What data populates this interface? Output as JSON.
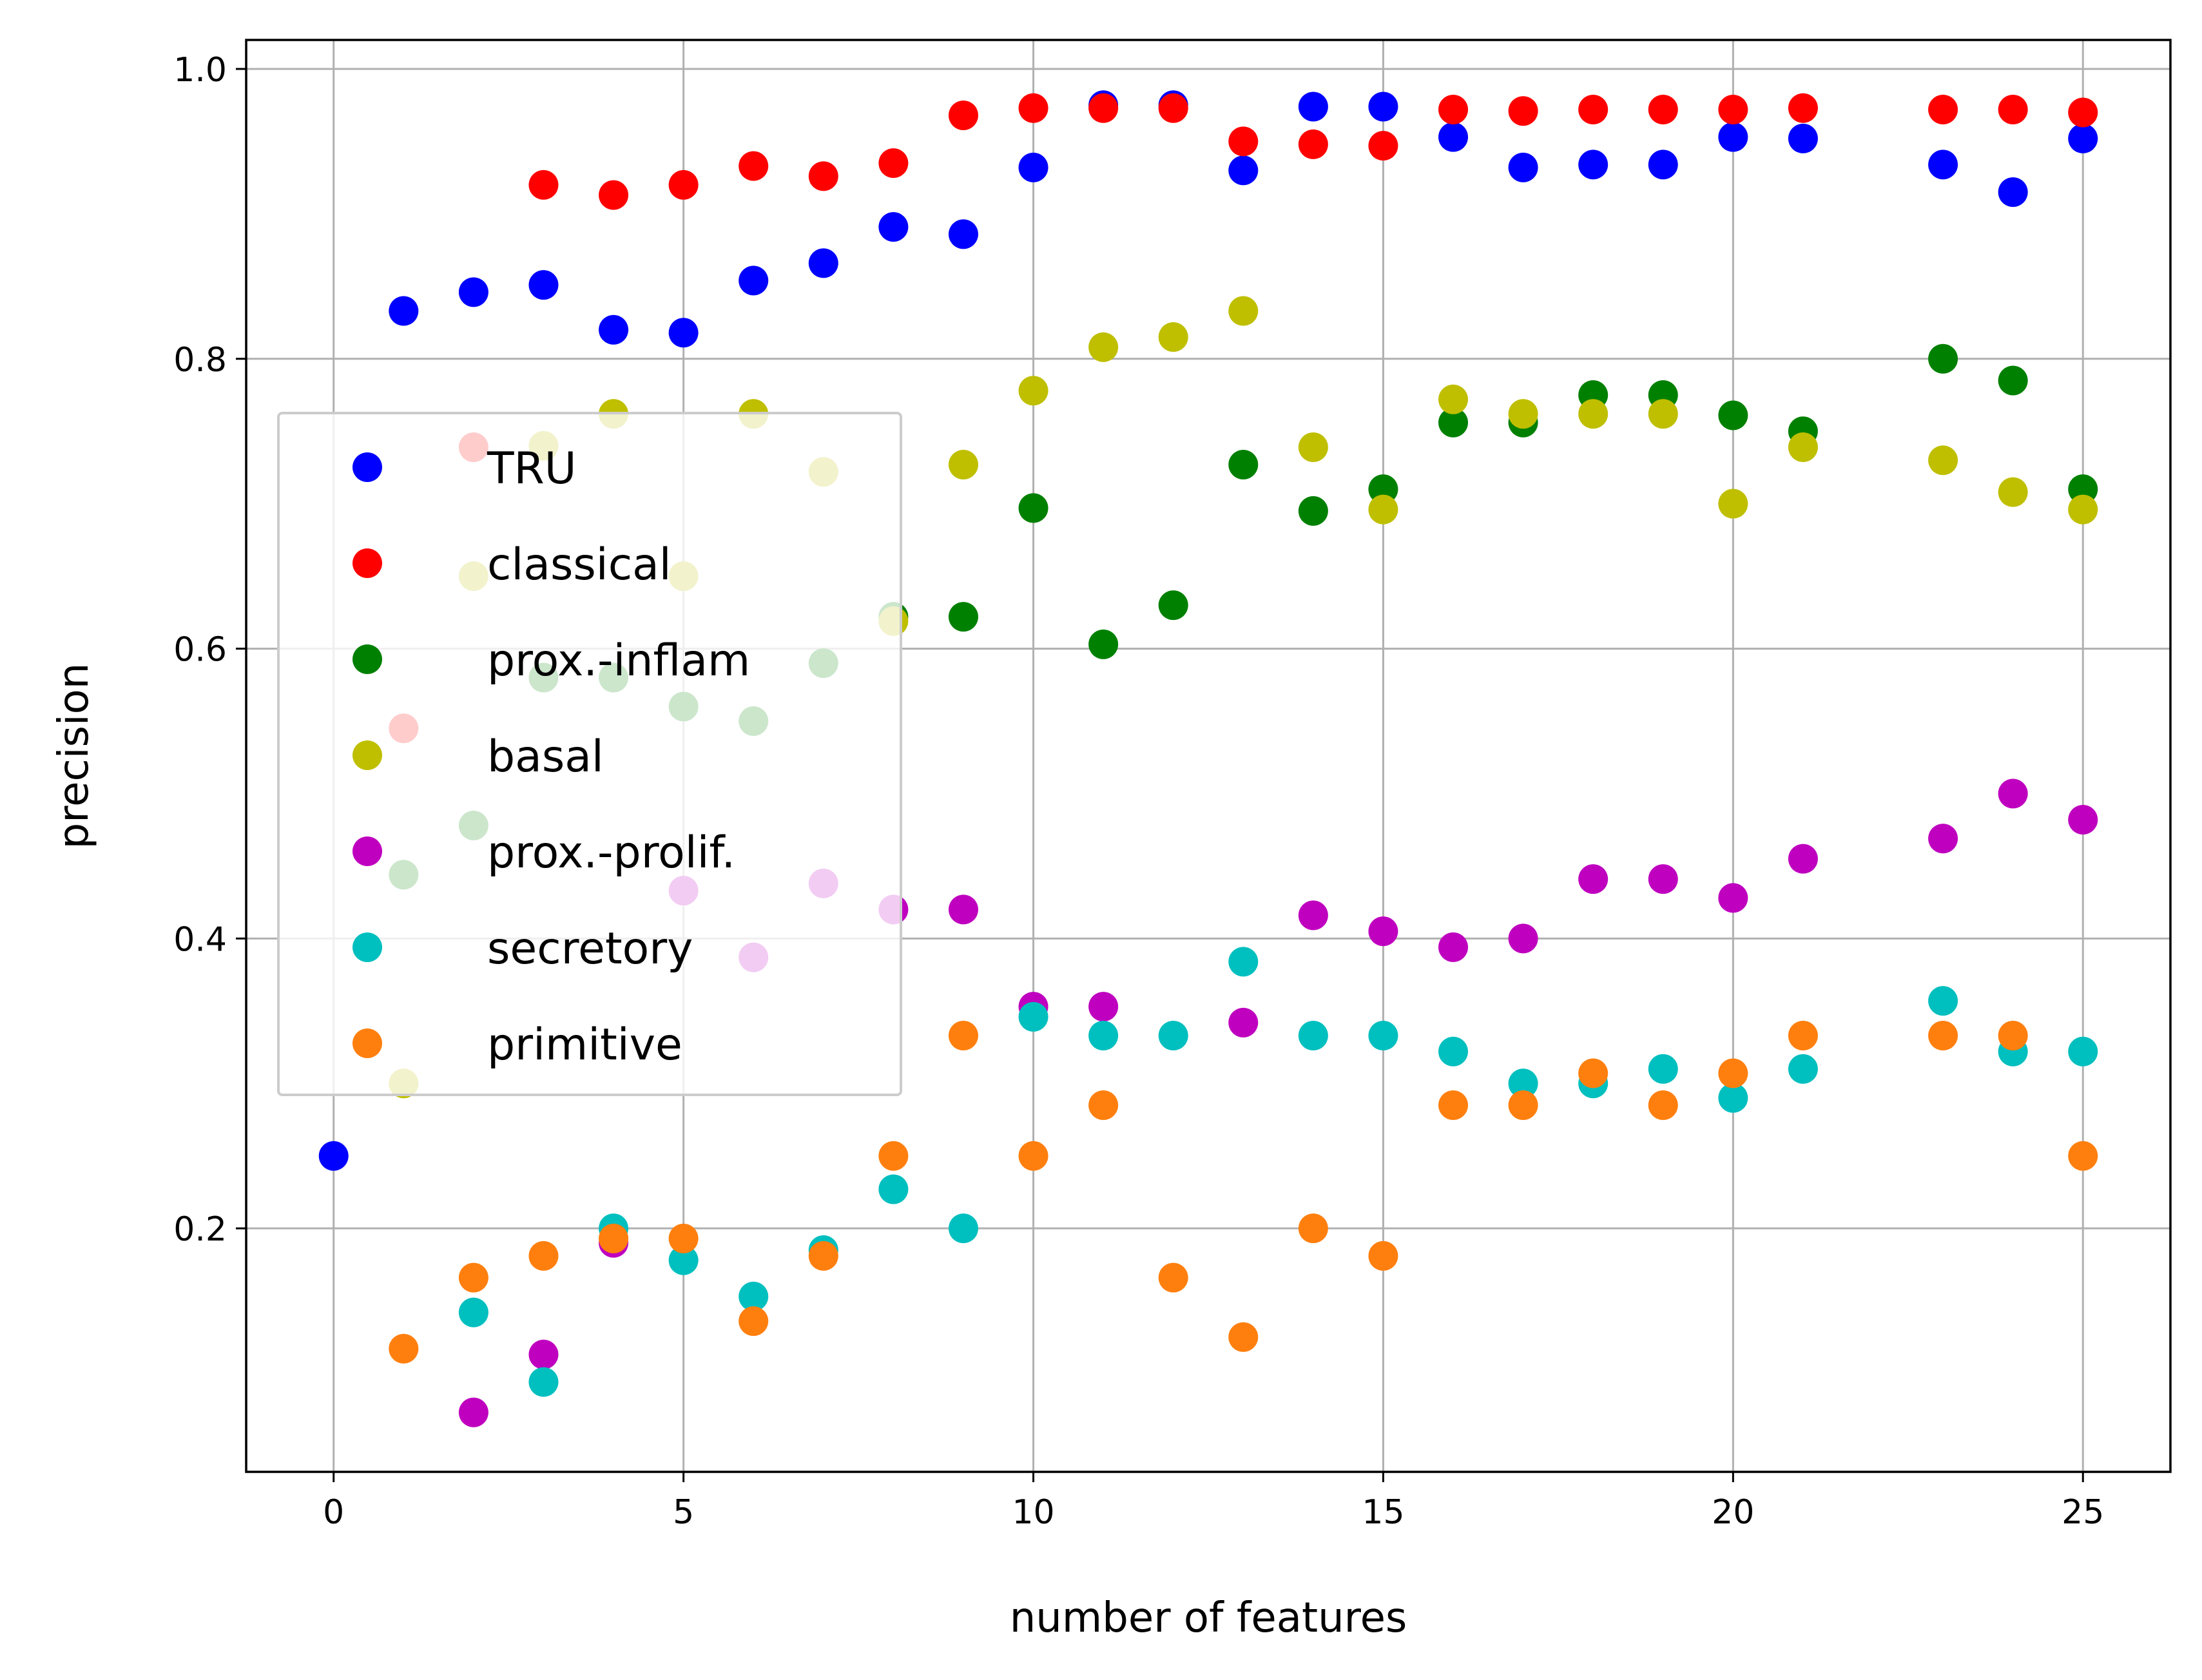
{
  "chart_data": {
    "type": "scatter",
    "title": "",
    "xlabel": "number of features",
    "ylabel": "precision",
    "xlim": [
      -1.25,
      26.25
    ],
    "ylim": [
      0.032,
      1.02
    ],
    "xticks": [
      0,
      5,
      10,
      15,
      20,
      25
    ],
    "yticks": [
      0.2,
      0.4,
      0.6,
      0.8,
      1.0
    ],
    "xtick_labels": [
      "0",
      "5",
      "10",
      "15",
      "20",
      "25"
    ],
    "ytick_labels": [
      "0.2",
      "0.4",
      "0.6",
      "0.8",
      "1.0"
    ],
    "grid": true,
    "legend_position": "center-left",
    "series": [
      {
        "name": "TRU",
        "color": "#0000ff",
        "x": [
          0,
          1,
          2,
          3,
          4,
          5,
          6,
          7,
          8,
          9,
          10,
          11,
          12,
          13,
          14,
          15,
          16,
          17,
          18,
          19,
          20,
          21,
          23,
          24,
          25
        ],
        "y": [
          0.25,
          0.833,
          0.846,
          0.851,
          0.82,
          0.818,
          0.854,
          0.866,
          0.891,
          0.886,
          0.932,
          0.975,
          0.975,
          0.93,
          0.974,
          0.974,
          0.953,
          0.932,
          0.934,
          0.934,
          0.953,
          0.952,
          0.934,
          0.915,
          0.952
        ]
      },
      {
        "name": "classical",
        "color": "#ff0000",
        "x": [
          1,
          2,
          3,
          4,
          5,
          6,
          7,
          8,
          9,
          10,
          11,
          12,
          13,
          14,
          15,
          16,
          17,
          18,
          19,
          20,
          21,
          23,
          24,
          25
        ],
        "y": [
          0.545,
          0.739,
          0.92,
          0.913,
          0.92,
          0.933,
          0.926,
          0.935,
          0.968,
          0.973,
          0.973,
          0.973,
          0.95,
          0.948,
          0.947,
          0.972,
          0.971,
          0.972,
          0.972,
          0.972,
          0.973,
          0.972,
          0.972,
          0.97
        ]
      },
      {
        "name": "prox.-inflam",
        "color": "#008000",
        "x": [
          1,
          2,
          3,
          4,
          5,
          6,
          7,
          8,
          9,
          10,
          11,
          12,
          13,
          14,
          15,
          16,
          17,
          18,
          19,
          20,
          21,
          23,
          24,
          25
        ],
        "y": [
          0.444,
          0.478,
          0.58,
          0.58,
          0.56,
          0.55,
          0.59,
          0.622,
          0.622,
          0.697,
          0.603,
          0.63,
          0.727,
          0.695,
          0.71,
          0.756,
          0.756,
          0.775,
          0.775,
          0.761,
          0.75,
          0.8,
          0.785,
          0.71
        ]
      },
      {
        "name": "basal",
        "color": "#bfbf00",
        "x": [
          1,
          2,
          3,
          4,
          5,
          6,
          7,
          8,
          9,
          10,
          11,
          12,
          13,
          14,
          15,
          16,
          17,
          18,
          19,
          20,
          21,
          23,
          24,
          25
        ],
        "y": [
          0.3,
          0.65,
          0.74,
          0.762,
          0.65,
          0.762,
          0.722,
          0.619,
          0.727,
          0.778,
          0.808,
          0.815,
          0.833,
          0.739,
          0.696,
          0.772,
          0.762,
          0.762,
          0.762,
          0.7,
          0.739,
          0.73,
          0.708,
          0.696
        ]
      },
      {
        "name": "prox.-prolif.",
        "color": "#bf00bf",
        "x": [
          2,
          3,
          4,
          5,
          6,
          7,
          8,
          9,
          10,
          11,
          13,
          14,
          15,
          16,
          17,
          18,
          19,
          20,
          21,
          23,
          24,
          25
        ],
        "y": [
          0.073,
          0.113,
          0.19,
          0.433,
          0.387,
          0.438,
          0.42,
          0.42,
          0.353,
          0.353,
          0.342,
          0.416,
          0.405,
          0.394,
          0.4,
          0.441,
          0.441,
          0.428,
          0.455,
          0.469,
          0.5,
          0.482
        ]
      },
      {
        "name": "secretory",
        "color": "#00bfbf",
        "x": [
          2,
          3,
          4,
          5,
          6,
          7,
          8,
          9,
          10,
          11,
          12,
          13,
          14,
          15,
          16,
          17,
          18,
          19,
          20,
          21,
          23,
          24,
          25
        ],
        "y": [
          0.142,
          0.094,
          0.2,
          0.178,
          0.153,
          0.185,
          0.227,
          0.2,
          0.346,
          0.333,
          0.333,
          0.384,
          0.333,
          0.333,
          0.322,
          0.3,
          0.3,
          0.31,
          0.29,
          0.31,
          0.357,
          0.322,
          0.322
        ]
      },
      {
        "name": "primitive",
        "color": "#ff7f0e",
        "x": [
          1,
          2,
          3,
          4,
          5,
          6,
          7,
          8,
          9,
          10,
          11,
          12,
          13,
          14,
          15,
          16,
          17,
          18,
          19,
          20,
          21,
          23,
          24,
          25
        ],
        "y": [
          0.117,
          0.166,
          0.181,
          0.193,
          0.193,
          0.136,
          0.181,
          0.25,
          0.333,
          0.25,
          0.285,
          0.166,
          0.125,
          0.2,
          0.181,
          0.285,
          0.285,
          0.307,
          0.285,
          0.307,
          0.333,
          0.333,
          0.333,
          0.25
        ]
      }
    ]
  }
}
